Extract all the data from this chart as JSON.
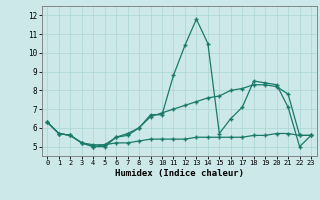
{
  "xlabel": "Humidex (Indice chaleur)",
  "background_color": "#cce8e8",
  "line_color": "#1a7a6a",
  "grid_color": "#aad4d4",
  "xlim": [
    -0.5,
    23.5
  ],
  "ylim": [
    4.5,
    12.5
  ],
  "yticks": [
    5,
    6,
    7,
    8,
    9,
    10,
    11,
    12
  ],
  "xticks": [
    0,
    1,
    2,
    3,
    4,
    5,
    6,
    7,
    8,
    9,
    10,
    11,
    12,
    13,
    14,
    15,
    16,
    17,
    18,
    19,
    20,
    21,
    22,
    23
  ],
  "line1_x": [
    0,
    1,
    2,
    3,
    4,
    5,
    6,
    7,
    8,
    9,
    10,
    11,
    12,
    13,
    14,
    15,
    16,
    17,
    18,
    19,
    20,
    21,
    22,
    23
  ],
  "line1_y": [
    6.3,
    5.7,
    5.6,
    5.2,
    5.0,
    5.0,
    5.5,
    5.6,
    6.0,
    6.7,
    6.7,
    8.8,
    10.4,
    11.8,
    10.5,
    5.7,
    6.5,
    7.1,
    8.5,
    8.4,
    8.3,
    7.1,
    5.0,
    5.6
  ],
  "line2_x": [
    0,
    1,
    2,
    3,
    4,
    5,
    6,
    7,
    8,
    9,
    10,
    11,
    12,
    13,
    14,
    15,
    16,
    17,
    18,
    19,
    20,
    21,
    22,
    23
  ],
  "line2_y": [
    6.3,
    5.7,
    5.6,
    5.2,
    5.0,
    5.1,
    5.5,
    5.7,
    6.0,
    6.6,
    6.8,
    7.0,
    7.2,
    7.4,
    7.6,
    7.7,
    8.0,
    8.1,
    8.3,
    8.3,
    8.2,
    7.8,
    5.6,
    5.6
  ],
  "line3_x": [
    0,
    1,
    2,
    3,
    4,
    5,
    6,
    7,
    8,
    9,
    10,
    11,
    12,
    13,
    14,
    15,
    16,
    17,
    18,
    19,
    20,
    21,
    22,
    23
  ],
  "line3_y": [
    6.3,
    5.7,
    5.6,
    5.2,
    5.1,
    5.1,
    5.2,
    5.2,
    5.3,
    5.4,
    5.4,
    5.4,
    5.4,
    5.5,
    5.5,
    5.5,
    5.5,
    5.5,
    5.6,
    5.6,
    5.7,
    5.7,
    5.6,
    5.6
  ]
}
